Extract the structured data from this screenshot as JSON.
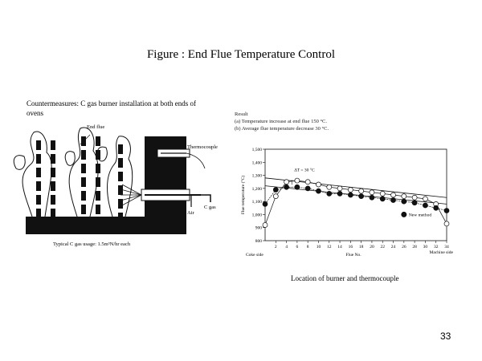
{
  "slide": {
    "title": "Figure  : End Flue Temperature Control",
    "caption": "Location of burner and thermocouple",
    "page_number": "33"
  },
  "left_diagram": {
    "heading": "Countermeasures:  C gas burner installation at both ends of ovens",
    "label_end_flue": "End flue",
    "label_thermocouple": "Thermocouple",
    "label_air": "Air",
    "label_c_gas": "C gas",
    "usage_note": "Typical C gas usage:  1.5m³N/hr each"
  },
  "result": {
    "heading": "Result",
    "line_a": "(a)  Temperature increase at end flue 150 °C.",
    "line_b": "(b)  Average flue temperature decrease 30 °C."
  },
  "chart_data": {
    "type": "line",
    "ylabel": "Flue temperature (°C)",
    "xlabel": "Flue No.",
    "x_left_note": "Coke side",
    "x_right_note": "Machine side",
    "annotation": "ΔT = 30 °C",
    "ylim": [
      800,
      1500
    ],
    "xlim": [
      0,
      34
    ],
    "y_ticks": [
      "1,500",
      "1,400",
      "1,300",
      "1,200",
      "1,100",
      "1,000",
      "900",
      "800"
    ],
    "x_ticks": [
      "2",
      "4",
      "6",
      "8",
      "10",
      "12",
      "14",
      "16",
      "18",
      "20",
      "22",
      "24",
      "26",
      "28",
      "30",
      "32",
      "34"
    ],
    "legend": {
      "new_method": "New method"
    },
    "series": [
      {
        "marker": "open",
        "x": [
          0,
          2,
          4,
          6,
          8,
          10,
          12,
          14,
          16,
          18,
          20,
          22,
          24,
          26,
          28,
          30,
          32,
          34
        ],
        "values": [
          920,
          1140,
          1250,
          1260,
          1250,
          1230,
          1210,
          1200,
          1190,
          1180,
          1170,
          1160,
          1150,
          1140,
          1130,
          1120,
          1080,
          930
        ]
      },
      {
        "name": "New method",
        "marker": "filled",
        "x": [
          0,
          2,
          4,
          6,
          8,
          10,
          12,
          14,
          16,
          18,
          20,
          22,
          24,
          26,
          28,
          30,
          32,
          34
        ],
        "values": [
          1080,
          1190,
          1210,
          1210,
          1200,
          1180,
          1160,
          1160,
          1150,
          1140,
          1130,
          1120,
          1110,
          1100,
          1090,
          1070,
          1050,
          1030
        ]
      }
    ]
  }
}
